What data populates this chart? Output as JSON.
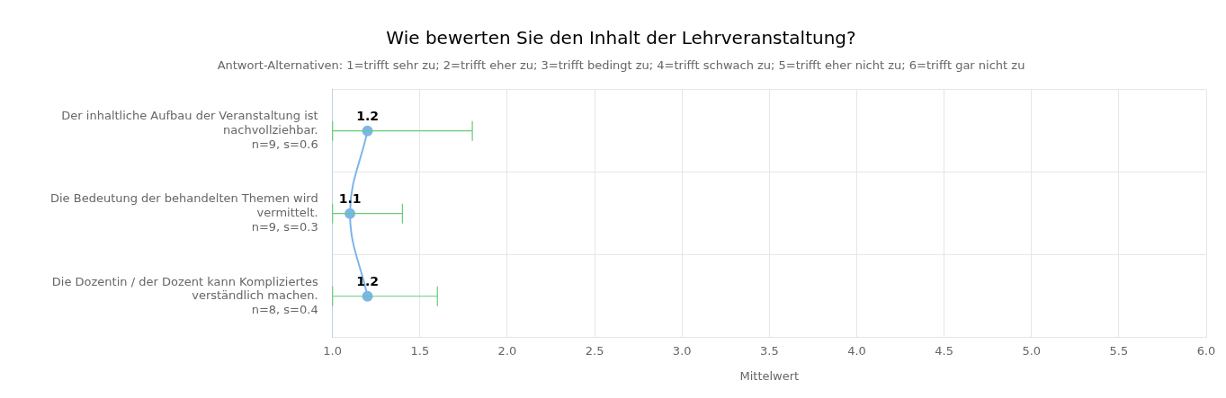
{
  "chart_data": {
    "type": "line",
    "orientation": "horizontal",
    "title": "Wie bewerten Sie den Inhalt der Lehrveranstaltung?",
    "subtitle": "Antwort-Alternativen: 1=trifft sehr zu; 2=trifft eher zu; 3=trifft bedingt zu; 4=trifft schwach zu; 5=trifft eher nicht zu; 6=trifft gar nicht zu",
    "xlabel": "Mittelwert",
    "categories": [
      "Der inhaltliche Aufbau der Veranstaltung ist\nnachvollziehbar.\nn=9, s=0.6",
      "Die Bedeutung der behandelten Themen wird\nvermittelt.\nn=9, s=0.3",
      "Die Dozentin / der Dozent kann Kompliziertes\nverständlich machen.\nn=8, s=0.4"
    ],
    "series": [
      {
        "color": "#7cb5ec",
        "values": [
          1.2,
          1.1,
          1.2
        ],
        "errors": [
          [
            1.0,
            1.8
          ],
          [
            1.0,
            1.4
          ],
          [
            1.0,
            1.6
          ]
        ]
      }
    ],
    "xlim": [
      1,
      6
    ],
    "xticks": [
      {
        "value": 1,
        "label": "1.0"
      },
      {
        "value": 1.5,
        "label": "1.5"
      },
      {
        "value": 2,
        "label": "2.0"
      },
      {
        "value": 2.5,
        "label": "2.5"
      },
      {
        "value": 3,
        "label": "3.0"
      },
      {
        "value": 3.5,
        "label": "3.5"
      },
      {
        "value": 4,
        "label": "4.0"
      },
      {
        "value": 4.5,
        "label": "4.5"
      },
      {
        "value": 5,
        "label": "5.0"
      },
      {
        "value": 5.5,
        "label": "5.5"
      },
      {
        "value": 6,
        "label": "6.0"
      }
    ],
    "grid": true,
    "legend": false,
    "marker": "circle",
    "data_labels": true
  }
}
